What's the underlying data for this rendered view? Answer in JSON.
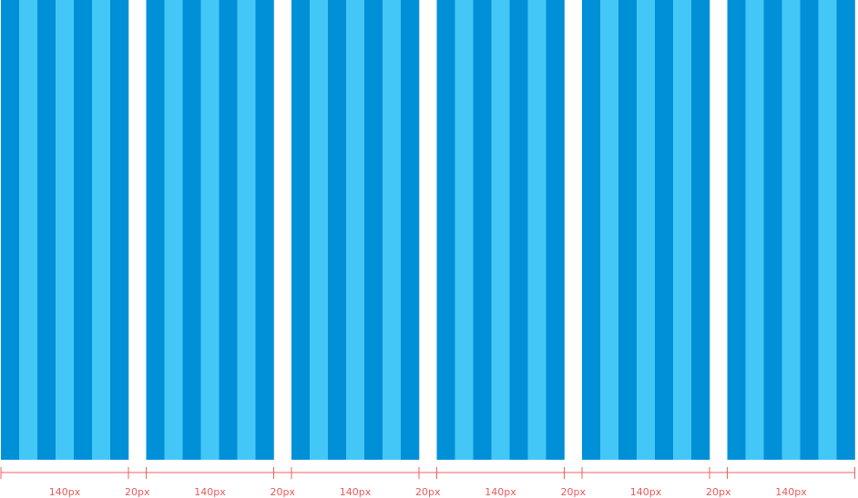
{
  "colors": {
    "stripe_dark": "#0090d8",
    "stripe_light": "#43c7f7",
    "gutter": "#ffffff",
    "ruler": "#f06060",
    "label": "#e85a5a"
  },
  "columns": [
    {
      "id": "col-1",
      "stripes": 7
    },
    {
      "id": "col-2",
      "stripes": 7
    },
    {
      "id": "col-3",
      "stripes": 7
    },
    {
      "id": "col-4",
      "stripes": 7
    },
    {
      "id": "col-5",
      "stripes": 7
    },
    {
      "id": "col-6",
      "stripes": 7
    }
  ],
  "measurements": [
    {
      "kind": "column",
      "label": "140px"
    },
    {
      "kind": "gutter",
      "label": "20px"
    },
    {
      "kind": "column",
      "label": "140px"
    },
    {
      "kind": "gutter",
      "label": "20px"
    },
    {
      "kind": "column",
      "label": "140px"
    },
    {
      "kind": "gutter",
      "label": "20px"
    },
    {
      "kind": "column",
      "label": "140px"
    },
    {
      "kind": "gutter",
      "label": "20px"
    },
    {
      "kind": "column",
      "label": "140px"
    },
    {
      "kind": "gutter",
      "label": "20px"
    },
    {
      "kind": "column",
      "label": "140px"
    }
  ]
}
